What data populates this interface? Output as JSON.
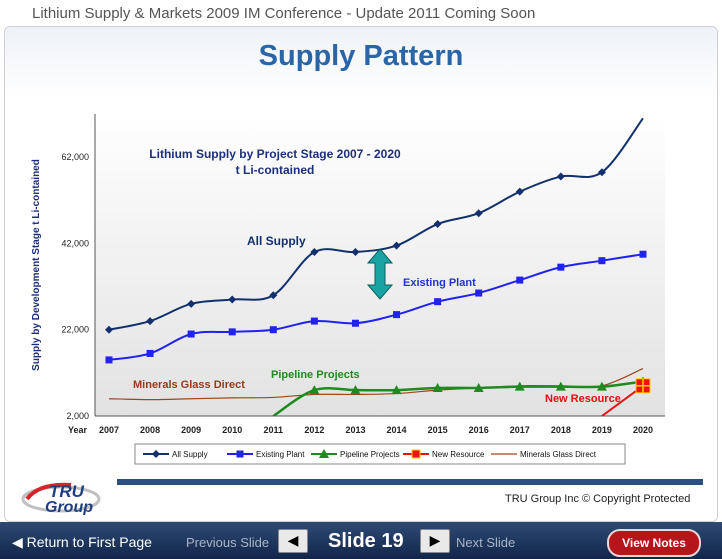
{
  "header": {
    "text": "Lithium Supply & Markets 2009 IM Conference -  Update 2011 Coming Soon"
  },
  "slide": {
    "title": "Supply Pattern",
    "copyright": "TRU Group Inc  © Copyright Protected"
  },
  "logo": {
    "text_top": "TRU",
    "text_bottom": "Group",
    "colors": {
      "red": "#d62528",
      "blue": "#1d3f82"
    }
  },
  "nav": {
    "return_label": "Return to First Page",
    "prev_label": "Previous Slide",
    "next_label": "Next Slide",
    "slide_label": "Slide 19",
    "view_notes_label": "View Notes",
    "return_icon": "triangle-left",
    "prev_icon": "triangle-left",
    "next_icon": "triangle-right"
  },
  "chart_data": {
    "type": "line",
    "title": "Lithium Supply by Project Stage 2007 - 2020",
    "subtitle": "t Li-contained",
    "ylabel": "Supply by Development Stage t Li-contained",
    "x_axis_label": "Year",
    "ylim": [
      2000,
      72000
    ],
    "y_ticks": [
      2000,
      22000,
      42000,
      62000
    ],
    "y_tick_labels": [
      "2,000",
      "22,000",
      "42,000",
      "62,000"
    ],
    "categories": [
      "2007",
      "2008",
      "2009",
      "2010",
      "2011",
      "2012",
      "2013",
      "2014",
      "2015",
      "2016",
      "2017",
      "2018",
      "2019",
      "2020"
    ],
    "grid": true,
    "legend_position": "bottom",
    "annotations": [
      {
        "text": "All Supply",
        "color": "#13306e"
      },
      {
        "text": "Existing Plant",
        "color": "#2233cc"
      },
      {
        "text": "Pipeline Projects",
        "color": "#1f8a1f"
      },
      {
        "text": "Minerals Glass Direct",
        "color": "#9a3a12"
      },
      {
        "text": "New Resource",
        "color": "#e01010"
      }
    ],
    "series": [
      {
        "name": "All Supply",
        "color": "#13306e",
        "marker": "diamond",
        "values": [
          22000,
          24000,
          28000,
          29000,
          30000,
          40000,
          40000,
          41500,
          46500,
          49000,
          54000,
          57500,
          58500,
          71000
        ]
      },
      {
        "name": "Existing Plant",
        "color": "#2222ee",
        "marker": "square",
        "values": [
          15000,
          16500,
          21000,
          21500,
          22000,
          24000,
          23500,
          25500,
          28500,
          30500,
          33500,
          36500,
          38000,
          39500
        ]
      },
      {
        "name": "Pipeline Projects",
        "color": "#1f8a1f",
        "marker": "triangle",
        "values": [
          null,
          null,
          null,
          null,
          2000,
          8000,
          8000,
          8000,
          8500,
          8500,
          8800,
          8800,
          8800,
          10000
        ]
      },
      {
        "name": "New Resource",
        "color": "#ee1111",
        "marker": "square-cross",
        "values": [
          null,
          null,
          null,
          null,
          null,
          null,
          null,
          null,
          null,
          null,
          null,
          null,
          2000,
          9000
        ]
      },
      {
        "name": "Minerals Glass Direct",
        "color": "#a0451d",
        "marker": "dash",
        "values": [
          6000,
          5800,
          6000,
          6200,
          6300,
          7000,
          7000,
          7200,
          8000,
          8500,
          9000,
          9000,
          9000,
          13000
        ]
      }
    ]
  }
}
